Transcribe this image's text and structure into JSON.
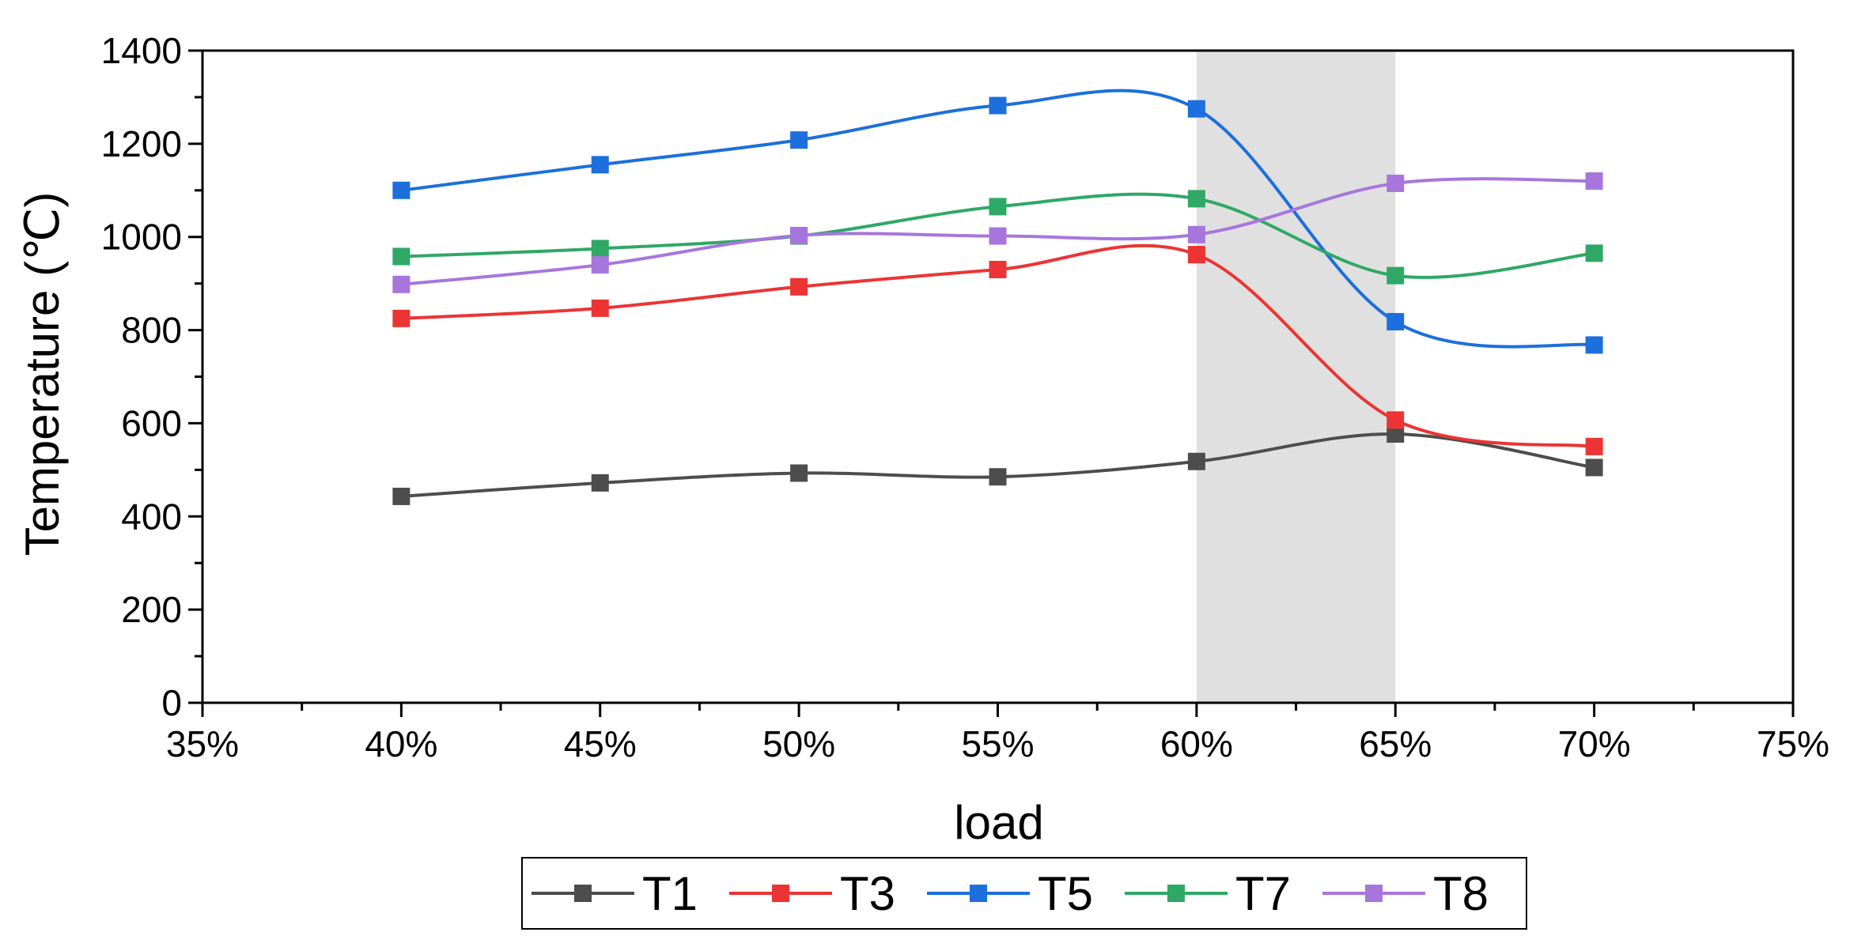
{
  "chart_data": {
    "type": "line",
    "xlabel": "load",
    "ylabel": "Temperature (℃)",
    "x": [
      40,
      45,
      50,
      55,
      60,
      65,
      70
    ],
    "xlim": [
      35,
      75
    ],
    "ylim": [
      0,
      1400
    ],
    "x_ticks": [
      35,
      40,
      45,
      50,
      55,
      60,
      65,
      70,
      75
    ],
    "x_tick_labels": [
      "35%",
      "40%",
      "45%",
      "50%",
      "55%",
      "60%",
      "65%",
      "70%",
      "75%"
    ],
    "y_ticks": [
      0,
      200,
      400,
      600,
      800,
      1000,
      1200,
      1400
    ],
    "y_tick_labels": [
      "0",
      "200",
      "400",
      "600",
      "800",
      "1000",
      "1200",
      "1400"
    ],
    "shaded_region": {
      "x_start": 60,
      "x_end": 65,
      "color": "#e0e0e0"
    },
    "grid": false,
    "legend_position": "bottom",
    "series": [
      {
        "name": "T1",
        "color": "#4d4d4d",
        "values": [
          443,
          472,
          493,
          485,
          518,
          577,
          505
        ]
      },
      {
        "name": "T3",
        "color": "#ec3434",
        "values": [
          825,
          847,
          893,
          930,
          962,
          607,
          550
        ]
      },
      {
        "name": "T5",
        "color": "#1c6fdc",
        "values": [
          1100,
          1155,
          1208,
          1282,
          1275,
          818,
          768
        ]
      },
      {
        "name": "T7",
        "color": "#2fa866",
        "values": [
          958,
          975,
          1002,
          1065,
          1082,
          917,
          965
        ]
      },
      {
        "name": "T8",
        "color": "#a776dc",
        "values": [
          898,
          940,
          1003,
          1002,
          1005,
          1115,
          1120
        ]
      }
    ]
  }
}
